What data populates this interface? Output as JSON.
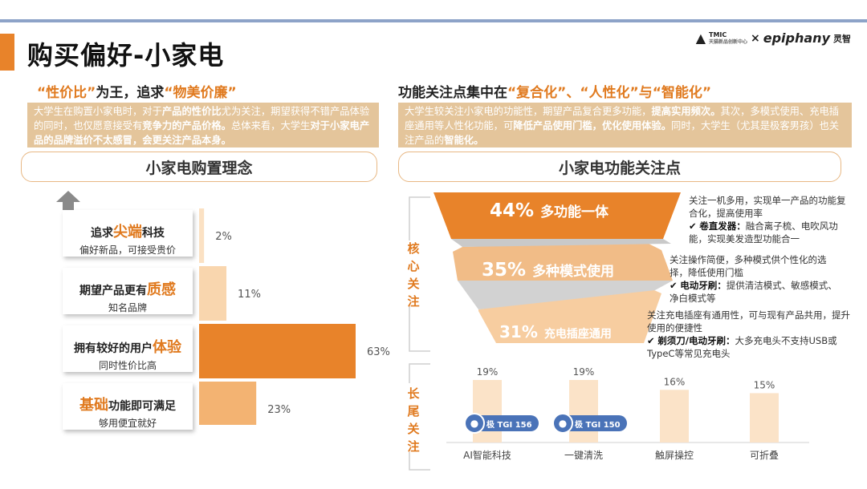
{
  "page_title": "购买偏好-小家电",
  "logos": {
    "tmic": "TMIC",
    "tmic_sub": "天猫新品创新中心",
    "times": "×",
    "epiphany": "epiphany",
    "epiphany_cn": "灵智"
  },
  "left": {
    "heading_part1": "“性价比”",
    "heading_part2": "为王，追求",
    "heading_part3": "“物美价廉”",
    "desc_a": "大学生在购置小家电时，对于",
    "desc_b": "产品的性价比",
    "desc_c": "尤为关注，期望获得不错产品体验的同时，也仅愿意接受有",
    "desc_d": "竞争力的产品价格。",
    "desc_e": "总体来看，大学生",
    "desc_f": "对于小家电产品的品牌溢价不太感冒，会更关注产品本身。",
    "pill": "小家电购置理念"
  },
  "right": {
    "heading_part1": "功能关注点集中在",
    "heading_part2": "“复合化”、“人性化”与“智能化”",
    "desc_a": "大学生较关注小家电的功能性，期望产品复合更多功能，",
    "desc_b": "提高实用频次。",
    "desc_c": "其次，多模式使用、充电插座通用等人性化功能，可",
    "desc_d": "降低产品使用门槛，优化使用体验。",
    "desc_e": "同时，大学生（尤其是极客男孩）也关注产品的",
    "desc_f": "智能化。",
    "pill": "小家电功能关注点"
  },
  "left_cards": [
    {
      "pre": "追求",
      "hl": "尖端",
      "post": "科技",
      "sub": "偏好新品，可接受贵价"
    },
    {
      "pre": "期望产品更有",
      "hl": "质感",
      "post": "",
      "sub": "知名品牌"
    },
    {
      "pre": "拥有较好的用户",
      "hl": "体验",
      "post": "",
      "sub": "同时性价比高"
    },
    {
      "pre": "",
      "hl": "基础",
      "post": "功能即可满足",
      "sub": "够用便宜就好"
    }
  ],
  "funnel": [
    {
      "pct": "44%",
      "label": "多功能一体",
      "note_a": "关注一机多用，实现单一产品的功能复合化，提高使用率",
      "bullet_b": "卷直发器：",
      "note_c": "融合离子梳、电吹风功能，实现美发造型功能合一"
    },
    {
      "pct": "35%",
      "label": "多种模式使用",
      "note_a": "关注操作简便，多种模式供个性化的选择，降低使用门槛",
      "bullet_b": "电动牙刷：",
      "note_c": "提供清洁模式、敏感模式、净白模式等"
    },
    {
      "pct": "31%",
      "label": "充电插座通用",
      "note_a": "关注充电插座有通用性，可与现有产品共用，提升使用的便捷性",
      "bullet_b": "剃须刀/电动牙刷：",
      "note_c": "大多充电头不支持USB或TypeC等常见充电头"
    }
  ],
  "core_label": "核心关注",
  "tail_label": "长尾关注",
  "checkmark": "✔",
  "tgi_badges": [
    "极 TGI 156",
    "极 TGI 150"
  ],
  "colors": {
    "orange_dark": "#e8832a",
    "orange_mid": "#f3b776",
    "orange_light": "#f8cfa0",
    "bar_light": "#fbe1c3",
    "tgi_blue": "#4a73b8"
  },
  "chart_data": [
    {
      "type": "bar",
      "orientation": "horizontal",
      "categories": [
        "追求尖端科技",
        "期望产品更有质感",
        "拥有较好的用户体验",
        "基础功能即可满足"
      ],
      "values": [
        2,
        11,
        63,
        23
      ],
      "value_labels": [
        "2%",
        "11%",
        "63%",
        "23%"
      ],
      "title": "小家电购置理念",
      "unit": "%"
    },
    {
      "type": "bar",
      "categories": [
        "AI智能科技",
        "一键清洗",
        "触屏操控",
        "可折叠"
      ],
      "values": [
        19,
        19,
        16,
        15
      ],
      "value_labels": [
        "19%",
        "19%",
        "16%",
        "15%"
      ],
      "title": "长尾关注",
      "unit": "%"
    }
  ]
}
